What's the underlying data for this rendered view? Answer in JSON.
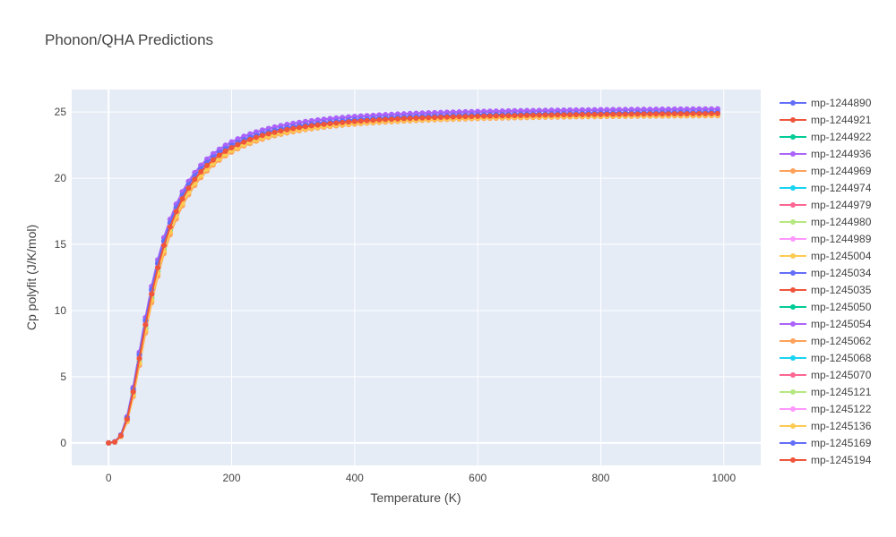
{
  "chart_data": {
    "type": "line",
    "title": "Phonon/QHA Predictions",
    "xlabel": "Temperature (K)",
    "ylabel": "Cp polyfit (J/K/mol)",
    "xlim": [
      -60,
      1060
    ],
    "ylim": [
      -1.7,
      26.7
    ],
    "xticks": [
      "0",
      "200",
      "400",
      "600",
      "800",
      "1000"
    ],
    "xtick_values": [
      0,
      200,
      400,
      600,
      800,
      1000
    ],
    "yticks": [
      "0",
      "5",
      "10",
      "15",
      "20",
      "25"
    ],
    "ytick_values": [
      0,
      5,
      10,
      15,
      20,
      25
    ],
    "grid": true,
    "legend_position": "right",
    "background": "#e5ecf6",
    "x_start": 0,
    "x_end": 990,
    "x_step": 10,
    "series": [
      {
        "name": "mp-1244890",
        "color": "#636efa",
        "theta": 300,
        "cp_max": 25.1
      },
      {
        "name": "mp-1244921",
        "color": "#EF553B",
        "theta": 305,
        "cp_max": 25.0
      },
      {
        "name": "mp-1244922",
        "color": "#00cc96",
        "theta": 310,
        "cp_max": 24.95
      },
      {
        "name": "mp-1244936",
        "color": "#ab63fa",
        "theta": 298,
        "cp_max": 25.35
      },
      {
        "name": "mp-1244969",
        "color": "#FFA15A",
        "theta": 318,
        "cp_max": 24.85
      },
      {
        "name": "mp-1244974",
        "color": "#19d3f3",
        "theta": 302,
        "cp_max": 25.0
      },
      {
        "name": "mp-1244979",
        "color": "#FF6692",
        "theta": 306,
        "cp_max": 25.05
      },
      {
        "name": "mp-1244980",
        "color": "#B6E880",
        "theta": 308,
        "cp_max": 25.0
      },
      {
        "name": "mp-1244989",
        "color": "#FF97FF",
        "theta": 304,
        "cp_max": 25.05
      },
      {
        "name": "mp-1245004",
        "color": "#FECB52",
        "theta": 315,
        "cp_max": 24.9
      },
      {
        "name": "mp-1245034",
        "color": "#636efa",
        "theta": 301,
        "cp_max": 25.1
      },
      {
        "name": "mp-1245035",
        "color": "#EF553B",
        "theta": 307,
        "cp_max": 25.0
      },
      {
        "name": "mp-1245050",
        "color": "#00cc96",
        "theta": 312,
        "cp_max": 24.95
      },
      {
        "name": "mp-1245054",
        "color": "#ab63fa",
        "theta": 297,
        "cp_max": 25.3
      },
      {
        "name": "mp-1245062",
        "color": "#FFA15A",
        "theta": 316,
        "cp_max": 24.9
      },
      {
        "name": "mp-1245068",
        "color": "#19d3f3",
        "theta": 303,
        "cp_max": 25.0
      },
      {
        "name": "mp-1245070",
        "color": "#FF6692",
        "theta": 305,
        "cp_max": 25.05
      },
      {
        "name": "mp-1245121",
        "color": "#B6E880",
        "theta": 309,
        "cp_max": 25.0
      },
      {
        "name": "mp-1245122",
        "color": "#FF97FF",
        "theta": 304,
        "cp_max": 25.05
      },
      {
        "name": "mp-1245136",
        "color": "#FECB52",
        "theta": 314,
        "cp_max": 24.9
      },
      {
        "name": "mp-1245169",
        "color": "#636efa",
        "theta": 300,
        "cp_max": 25.1
      },
      {
        "name": "mp-1245194",
        "color": "#EF553B",
        "theta": 306,
        "cp_max": 25.0
      }
    ]
  }
}
